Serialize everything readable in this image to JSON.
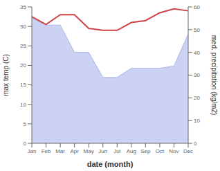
{
  "chart_data": {
    "type": "line",
    "xlabel": "date (month)",
    "ylabel": "max temp (C)",
    "y2label": "med. precipitation (kg/m2)",
    "categories": [
      "Jan",
      "Feb",
      "Mar",
      "Apr",
      "May",
      "Jun",
      "Jul",
      "Aug",
      "Sep",
      "Oct",
      "Nov",
      "Dec"
    ],
    "series": [
      {
        "type": "area",
        "axis": "y2",
        "color": "#aab4e8",
        "values": [
          55.0,
          52.0,
          52.0,
          40.0,
          40.0,
          29.0,
          29.0,
          33.0,
          33.0,
          33.0,
          34.0,
          48.0
        ]
      },
      {
        "type": "line",
        "color": "#cc4444",
        "values": [
          32.5,
          30.5,
          33.0,
          33.0,
          29.5,
          29.0,
          29.0,
          31.0,
          31.5,
          33.5,
          34.5,
          34.0
        ]
      }
    ],
    "ylim": [
      0,
      35
    ],
    "yticks": [
      0,
      5,
      10,
      15,
      20,
      25,
      30,
      35
    ],
    "y2lim": [
      0,
      60
    ],
    "y2ticks": [
      0,
      10,
      20,
      30,
      40,
      50,
      60
    ],
    "grid": false
  }
}
